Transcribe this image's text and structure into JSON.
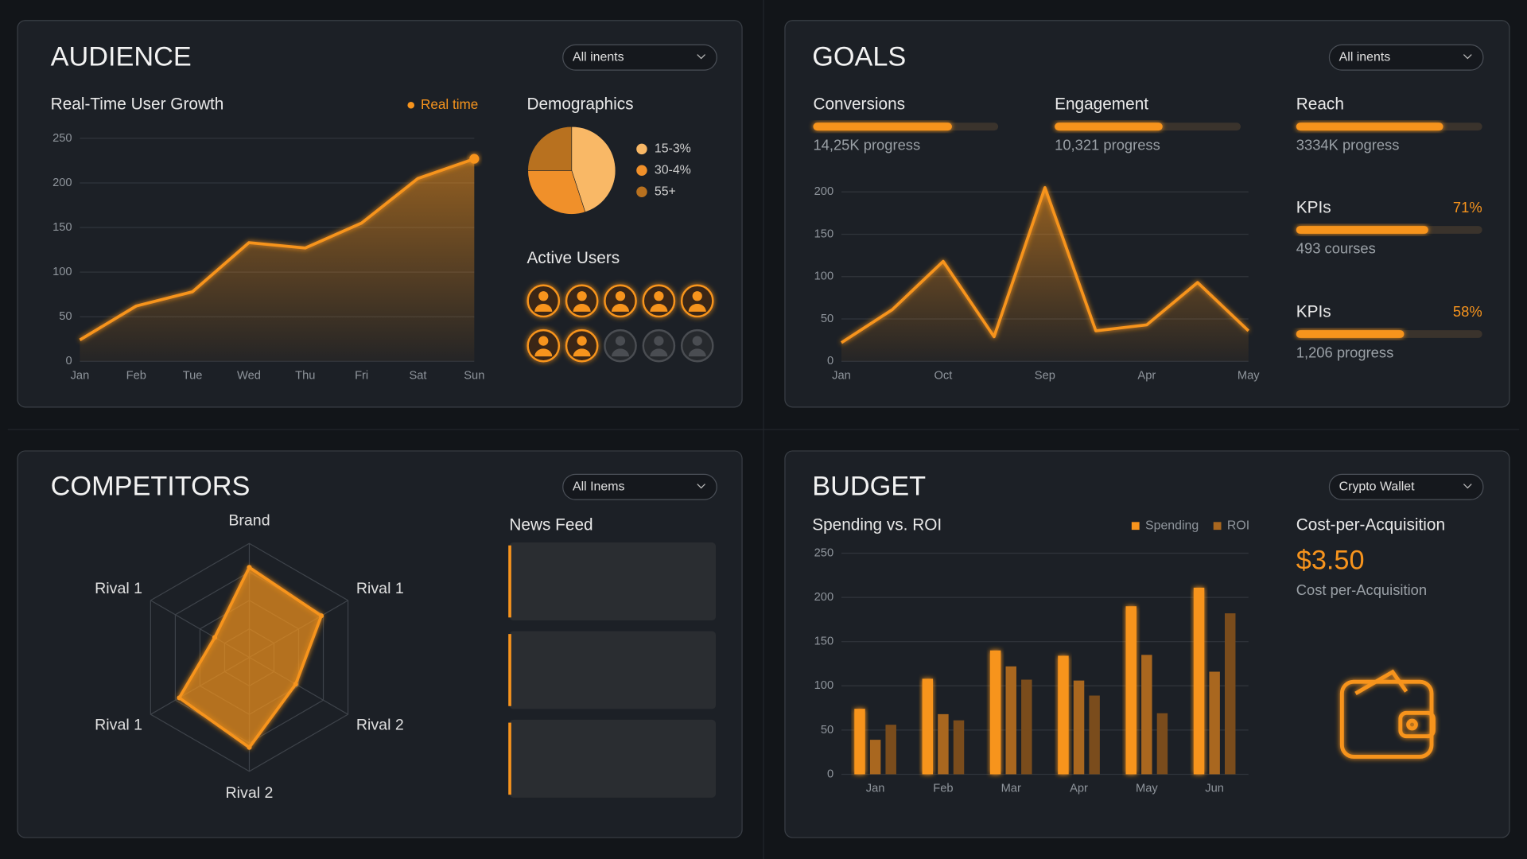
{
  "audience": {
    "title": "AUDIENCE",
    "filter": "All inents",
    "active_users": {
      "title": "Active Users",
      "active": [
        true,
        true,
        true,
        true,
        true,
        true,
        true,
        false,
        false,
        false
      ]
    }
  },
  "goals": {
    "title": "GOALS",
    "filter": "All inents",
    "color": "#f7941d",
    "progress": [
      {
        "name": "Conversions",
        "value": 75,
        "caption": "14,25K progress"
      },
      {
        "name": "Engagement",
        "value": 58,
        "caption": "10,321 progress"
      },
      {
        "name": "Reach",
        "value": 79,
        "caption": "3334K progress"
      },
      {
        "name": "KPIs",
        "value": 71,
        "value_label": "71%",
        "caption": "493 courses"
      },
      {
        "name": "KPIs",
        "value": 58,
        "value_label": "58%",
        "caption": "1,206 progress"
      }
    ]
  },
  "competitors": {
    "title": "COMPETITORS",
    "filter": "All Inems",
    "news_title": "News Feed"
  },
  "budget": {
    "title": "BUDGET",
    "filter": "Crypto Wallet",
    "cpa_title": "Cost-per-Acquisition",
    "cpa_value": "$3.50",
    "cpa_caption": "Cost per-Acquisition"
  },
  "chart_data": [
    {
      "type": "area",
      "title": "Real-Time User Growth",
      "categories": [
        "Jan",
        "Feb",
        "Tue",
        "Wed",
        "Thu",
        "Fri",
        "Sat",
        "Sun"
      ],
      "series": [
        {
          "name": "Real time",
          "color": "#f7941d",
          "values": [
            24,
            62,
            78,
            133,
            127,
            155,
            205,
            227
          ]
        }
      ],
      "ylim": [
        0,
        250
      ],
      "yticks": [
        0,
        50,
        100,
        150,
        200,
        250
      ],
      "grid": true
    },
    {
      "type": "pie",
      "title": "Demographics",
      "categories": [
        "15-3%",
        "30-4%",
        "55+"
      ],
      "values": [
        45,
        30,
        25
      ],
      "colors": [
        "#f9b866",
        "#f0902a",
        "#b8711f"
      ]
    },
    {
      "type": "area",
      "categories": [
        "Jan",
        null,
        "Oct",
        null,
        "Sep",
        null,
        "Apr",
        null,
        "May"
      ],
      "series": [
        {
          "color": "#f7941d",
          "values": [
            22,
            61,
            118,
            29,
            205,
            36,
            43,
            93,
            36
          ]
        }
      ],
      "ylim": [
        0,
        200
      ],
      "yticks": [
        0,
        50,
        100,
        150,
        200
      ],
      "grid": true
    },
    {
      "type": "radar",
      "categories": [
        "Brand",
        "Rival 1",
        "Rival 2",
        "Rival 2",
        "Rival 1",
        "Rival 1"
      ],
      "values": [
        79,
        73,
        47,
        79,
        71,
        35
      ],
      "rlim": [
        0,
        100
      ],
      "rticks": [
        25,
        50,
        75,
        100
      ],
      "color": "#f7941d"
    },
    {
      "type": "bar",
      "title": "Spending vs. ROI",
      "categories": [
        "Jan",
        "Feb",
        "Mar",
        "Apr",
        "May",
        "Jun"
      ],
      "series": [
        {
          "name": "Spending",
          "color": "#f7941d",
          "values": [
            74,
            108,
            140,
            134,
            190,
            211
          ]
        },
        {
          "name": "ROI",
          "color": "#a9671f",
          "values": [
            39,
            68,
            122,
            106,
            135,
            116
          ]
        },
        {
          "color": "#7a4c1c",
          "values": [
            56,
            61,
            107,
            89,
            69,
            182
          ]
        }
      ],
      "ylim": [
        0,
        250
      ],
      "yticks": [
        0,
        50,
        100,
        150,
        200,
        250
      ],
      "grid": true
    }
  ]
}
